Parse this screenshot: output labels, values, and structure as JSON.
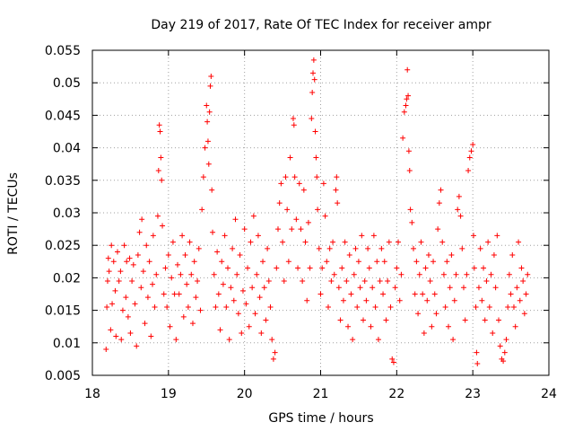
{
  "chart_data": {
    "type": "scatter",
    "title": "Day 219 of 2017, Rate Of TEC Index for receiver ampr",
    "xlabel": "GPS time / hours",
    "ylabel": "ROTI / TECUs",
    "xlim": [
      18,
      24
    ],
    "ylim": [
      0.005,
      0.055
    ],
    "xticks": [
      18,
      19,
      20,
      21,
      22,
      23,
      24
    ],
    "yticks": [
      0.005,
      0.01,
      0.015,
      0.02,
      0.025,
      0.03,
      0.035,
      0.04,
      0.045,
      0.05,
      0.055
    ],
    "xtick_labels": [
      "18",
      "19",
      "20",
      "21",
      "22",
      "23",
      "24"
    ],
    "ytick_labels": [
      "0.005",
      "0.01",
      "0.015",
      "0.02",
      "0.025",
      "0.03",
      "0.035",
      "0.04",
      "0.045",
      "0.05",
      "0.055"
    ],
    "grid": true,
    "marker": "+",
    "color": "#ff0000",
    "series": [
      {
        "name": "ROTI",
        "points": [
          [
            18.18,
            0.009
          ],
          [
            18.19,
            0.0155
          ],
          [
            18.2,
            0.0195
          ],
          [
            18.21,
            0.023
          ],
          [
            18.22,
            0.021
          ],
          [
            18.24,
            0.012
          ],
          [
            18.25,
            0.025
          ],
          [
            18.26,
            0.016
          ],
          [
            18.28,
            0.0225
          ],
          [
            18.3,
            0.018
          ],
          [
            18.31,
            0.011
          ],
          [
            18.33,
            0.024
          ],
          [
            18.35,
            0.0195
          ],
          [
            18.37,
            0.021
          ],
          [
            18.38,
            0.0105
          ],
          [
            18.4,
            0.015
          ],
          [
            18.42,
            0.025
          ],
          [
            18.44,
            0.017
          ],
          [
            18.45,
            0.0225
          ],
          [
            18.47,
            0.014
          ],
          [
            18.49,
            0.023
          ],
          [
            18.5,
            0.0115
          ],
          [
            18.52,
            0.0195
          ],
          [
            18.54,
            0.022
          ],
          [
            18.56,
            0.016
          ],
          [
            18.58,
            0.0095
          ],
          [
            18.6,
            0.0235
          ],
          [
            18.62,
            0.027
          ],
          [
            18.64,
            0.0185
          ],
          [
            18.65,
            0.029
          ],
          [
            18.67,
            0.021
          ],
          [
            18.69,
            0.013
          ],
          [
            18.71,
            0.025
          ],
          [
            18.73,
            0.017
          ],
          [
            18.75,
            0.0225
          ],
          [
            18.77,
            0.011
          ],
          [
            18.79,
            0.019
          ],
          [
            18.8,
            0.0265
          ],
          [
            18.82,
            0.0155
          ],
          [
            18.84,
            0.0205
          ],
          [
            18.86,
            0.0295
          ],
          [
            18.87,
            0.0365
          ],
          [
            18.88,
            0.0435
          ],
          [
            18.89,
            0.0425
          ],
          [
            18.9,
            0.0385
          ],
          [
            18.91,
            0.035
          ],
          [
            18.92,
            0.028
          ],
          [
            18.94,
            0.0175
          ],
          [
            18.96,
            0.0215
          ],
          [
            18.98,
            0.0155
          ],
          [
            19.0,
            0.0235
          ],
          [
            19.02,
            0.0125
          ],
          [
            19.04,
            0.02
          ],
          [
            19.06,
            0.0255
          ],
          [
            19.08,
            0.0175
          ],
          [
            19.1,
            0.0105
          ],
          [
            19.12,
            0.022
          ],
          [
            19.14,
            0.0175
          ],
          [
            19.16,
            0.0205
          ],
          [
            19.18,
            0.0265
          ],
          [
            19.2,
            0.014
          ],
          [
            19.22,
            0.0235
          ],
          [
            19.24,
            0.019
          ],
          [
            19.26,
            0.0155
          ],
          [
            19.28,
            0.0255
          ],
          [
            19.3,
            0.0205
          ],
          [
            19.32,
            0.013
          ],
          [
            19.34,
            0.0225
          ],
          [
            19.36,
            0.017
          ],
          [
            19.38,
            0.0195
          ],
          [
            19.4,
            0.0245
          ],
          [
            19.42,
            0.015
          ],
          [
            19.44,
            0.0305
          ],
          [
            19.46,
            0.0355
          ],
          [
            19.48,
            0.04
          ],
          [
            19.5,
            0.0465
          ],
          [
            19.51,
            0.044
          ],
          [
            19.52,
            0.041
          ],
          [
            19.53,
            0.0375
          ],
          [
            19.54,
            0.0455
          ],
          [
            19.55,
            0.0495
          ],
          [
            19.56,
            0.051
          ],
          [
            19.57,
            0.0335
          ],
          [
            19.58,
            0.027
          ],
          [
            19.6,
            0.0205
          ],
          [
            19.62,
            0.0155
          ],
          [
            19.64,
            0.024
          ],
          [
            19.66,
            0.0175
          ],
          [
            19.68,
            0.012
          ],
          [
            19.7,
            0.0225
          ],
          [
            19.72,
            0.019
          ],
          [
            19.74,
            0.0265
          ],
          [
            19.76,
            0.0155
          ],
          [
            19.78,
            0.0215
          ],
          [
            19.8,
            0.0105
          ],
          [
            19.82,
            0.0185
          ],
          [
            19.84,
            0.0245
          ],
          [
            19.86,
            0.0165
          ],
          [
            19.88,
            0.029
          ],
          [
            19.9,
            0.0205
          ],
          [
            19.92,
            0.0145
          ],
          [
            19.94,
            0.0235
          ],
          [
            19.96,
            0.0115
          ],
          [
            19.98,
            0.018
          ],
          [
            20.0,
            0.0275
          ],
          [
            20.02,
            0.016
          ],
          [
            20.04,
            0.0215
          ],
          [
            20.06,
            0.0125
          ],
          [
            20.08,
            0.0255
          ],
          [
            20.1,
            0.0185
          ],
          [
            20.12,
            0.0295
          ],
          [
            20.14,
            0.0145
          ],
          [
            20.16,
            0.0205
          ],
          [
            20.18,
            0.0265
          ],
          [
            20.2,
            0.017
          ],
          [
            20.22,
            0.0115
          ],
          [
            20.24,
            0.0225
          ],
          [
            20.26,
            0.0185
          ],
          [
            20.28,
            0.0135
          ],
          [
            20.3,
            0.0245
          ],
          [
            20.32,
            0.0195
          ],
          [
            20.34,
            0.0155
          ],
          [
            20.36,
            0.0105
          ],
          [
            20.38,
            0.0075
          ],
          [
            20.4,
            0.0085
          ],
          [
            20.42,
            0.0215
          ],
          [
            20.44,
            0.0275
          ],
          [
            20.46,
            0.0315
          ],
          [
            20.48,
            0.0345
          ],
          [
            20.5,
            0.0255
          ],
          [
            20.52,
            0.0195
          ],
          [
            20.54,
            0.0355
          ],
          [
            20.56,
            0.0305
          ],
          [
            20.58,
            0.0225
          ],
          [
            20.6,
            0.0385
          ],
          [
            20.62,
            0.0275
          ],
          [
            20.64,
            0.0445
          ],
          [
            20.65,
            0.0435
          ],
          [
            20.66,
            0.0355
          ],
          [
            20.68,
            0.029
          ],
          [
            20.7,
            0.0215
          ],
          [
            20.72,
            0.0345
          ],
          [
            20.74,
            0.0275
          ],
          [
            20.76,
            0.0195
          ],
          [
            20.78,
            0.0335
          ],
          [
            20.8,
            0.0255
          ],
          [
            20.82,
            0.0165
          ],
          [
            20.84,
            0.0285
          ],
          [
            20.86,
            0.0215
          ],
          [
            20.88,
            0.0445
          ],
          [
            20.89,
            0.0485
          ],
          [
            20.9,
            0.0515
          ],
          [
            20.91,
            0.0535
          ],
          [
            20.92,
            0.0505
          ],
          [
            20.93,
            0.0425
          ],
          [
            20.94,
            0.0385
          ],
          [
            20.95,
            0.0355
          ],
          [
            20.96,
            0.0305
          ],
          [
            20.98,
            0.0245
          ],
          [
            21.0,
            0.0175
          ],
          [
            21.02,
            0.0215
          ],
          [
            21.04,
            0.0345
          ],
          [
            21.06,
            0.0295
          ],
          [
            21.08,
            0.0225
          ],
          [
            21.1,
            0.0155
          ],
          [
            21.12,
            0.0245
          ],
          [
            21.14,
            0.0195
          ],
          [
            21.16,
            0.0255
          ],
          [
            21.18,
            0.0205
          ],
          [
            21.2,
            0.0335
          ],
          [
            21.21,
            0.0355
          ],
          [
            21.22,
            0.0315
          ],
          [
            21.24,
            0.0185
          ],
          [
            21.26,
            0.0135
          ],
          [
            21.28,
            0.0215
          ],
          [
            21.3,
            0.0165
          ],
          [
            21.32,
            0.0255
          ],
          [
            21.34,
            0.0195
          ],
          [
            21.36,
            0.0125
          ],
          [
            21.38,
            0.0235
          ],
          [
            21.4,
            0.0175
          ],
          [
            21.42,
            0.0105
          ],
          [
            21.44,
            0.0205
          ],
          [
            21.46,
            0.0245
          ],
          [
            21.48,
            0.0155
          ],
          [
            21.5,
            0.0225
          ],
          [
            21.52,
            0.0185
          ],
          [
            21.54,
            0.0265
          ],
          [
            21.56,
            0.0135
          ],
          [
            21.58,
            0.0195
          ],
          [
            21.6,
            0.0165
          ],
          [
            21.62,
            0.0245
          ],
          [
            21.64,
            0.0215
          ],
          [
            21.66,
            0.0125
          ],
          [
            21.68,
            0.0185
          ],
          [
            21.7,
            0.0265
          ],
          [
            21.72,
            0.0155
          ],
          [
            21.74,
            0.0225
          ],
          [
            21.76,
            0.0105
          ],
          [
            21.78,
            0.0195
          ],
          [
            21.8,
            0.0245
          ],
          [
            21.82,
            0.0175
          ],
          [
            21.84,
            0.0225
          ],
          [
            21.86,
            0.0135
          ],
          [
            21.88,
            0.0195
          ],
          [
            21.9,
            0.0255
          ],
          [
            21.92,
            0.0155
          ],
          [
            21.94,
            0.0075
          ],
          [
            21.96,
            0.007
          ],
          [
            21.98,
            0.0185
          ],
          [
            22.0,
            0.0215
          ],
          [
            22.02,
            0.0255
          ],
          [
            22.04,
            0.0165
          ],
          [
            22.06,
            0.0205
          ],
          [
            22.08,
            0.0415
          ],
          [
            22.1,
            0.0455
          ],
          [
            22.12,
            0.0465
          ],
          [
            22.13,
            0.0475
          ],
          [
            22.14,
            0.052
          ],
          [
            22.15,
            0.048
          ],
          [
            22.16,
            0.0395
          ],
          [
            22.17,
            0.0365
          ],
          [
            22.18,
            0.0305
          ],
          [
            22.2,
            0.0285
          ],
          [
            22.22,
            0.0245
          ],
          [
            22.24,
            0.0175
          ],
          [
            22.26,
            0.0225
          ],
          [
            22.28,
            0.0145
          ],
          [
            22.3,
            0.0205
          ],
          [
            22.32,
            0.0255
          ],
          [
            22.34,
            0.0175
          ],
          [
            22.36,
            0.0115
          ],
          [
            22.38,
            0.0215
          ],
          [
            22.4,
            0.0165
          ],
          [
            22.42,
            0.0235
          ],
          [
            22.44,
            0.0195
          ],
          [
            22.46,
            0.0125
          ],
          [
            22.48,
            0.0225
          ],
          [
            22.5,
            0.0175
          ],
          [
            22.52,
            0.0145
          ],
          [
            22.54,
            0.0275
          ],
          [
            22.56,
            0.0315
          ],
          [
            22.58,
            0.0335
          ],
          [
            22.6,
            0.0255
          ],
          [
            22.62,
            0.0205
          ],
          [
            22.64,
            0.0155
          ],
          [
            22.66,
            0.0225
          ],
          [
            22.68,
            0.0125
          ],
          [
            22.7,
            0.0185
          ],
          [
            22.72,
            0.0235
          ],
          [
            22.74,
            0.0105
          ],
          [
            22.76,
            0.0165
          ],
          [
            22.78,
            0.0205
          ],
          [
            22.8,
            0.0305
          ],
          [
            22.82,
            0.0325
          ],
          [
            22.84,
            0.0295
          ],
          [
            22.86,
            0.0245
          ],
          [
            22.88,
            0.0185
          ],
          [
            22.9,
            0.0135
          ],
          [
            22.92,
            0.0205
          ],
          [
            22.94,
            0.0365
          ],
          [
            22.96,
            0.0385
          ],
          [
            22.98,
            0.0395
          ],
          [
            23.0,
            0.0405
          ],
          [
            23.01,
            0.0265
          ],
          [
            23.02,
            0.0215
          ],
          [
            23.04,
            0.0155
          ],
          [
            23.05,
            0.0085
          ],
          [
            23.06,
            0.0068
          ],
          [
            23.08,
            0.0185
          ],
          [
            23.1,
            0.0245
          ],
          [
            23.12,
            0.0165
          ],
          [
            23.14,
            0.0215
          ],
          [
            23.16,
            0.0135
          ],
          [
            23.18,
            0.0195
          ],
          [
            23.2,
            0.0255
          ],
          [
            23.22,
            0.0155
          ],
          [
            23.24,
            0.0205
          ],
          [
            23.26,
            0.0115
          ],
          [
            23.28,
            0.0235
          ],
          [
            23.3,
            0.0185
          ],
          [
            23.32,
            0.0265
          ],
          [
            23.34,
            0.0135
          ],
          [
            23.36,
            0.0095
          ],
          [
            23.38,
            0.0075
          ],
          [
            23.4,
            0.0072
          ],
          [
            23.42,
            0.0085
          ],
          [
            23.44,
            0.0105
          ],
          [
            23.46,
            0.0155
          ],
          [
            23.48,
            0.0205
          ],
          [
            23.5,
            0.0175
          ],
          [
            23.52,
            0.0235
          ],
          [
            23.54,
            0.0155
          ],
          [
            23.56,
            0.0125
          ],
          [
            23.58,
            0.0185
          ],
          [
            23.6,
            0.0255
          ],
          [
            23.62,
            0.0165
          ],
          [
            23.64,
            0.0215
          ],
          [
            23.66,
            0.0195
          ],
          [
            23.68,
            0.0145
          ],
          [
            23.7,
            0.0175
          ],
          [
            23.72,
            0.0205
          ]
        ]
      }
    ]
  }
}
